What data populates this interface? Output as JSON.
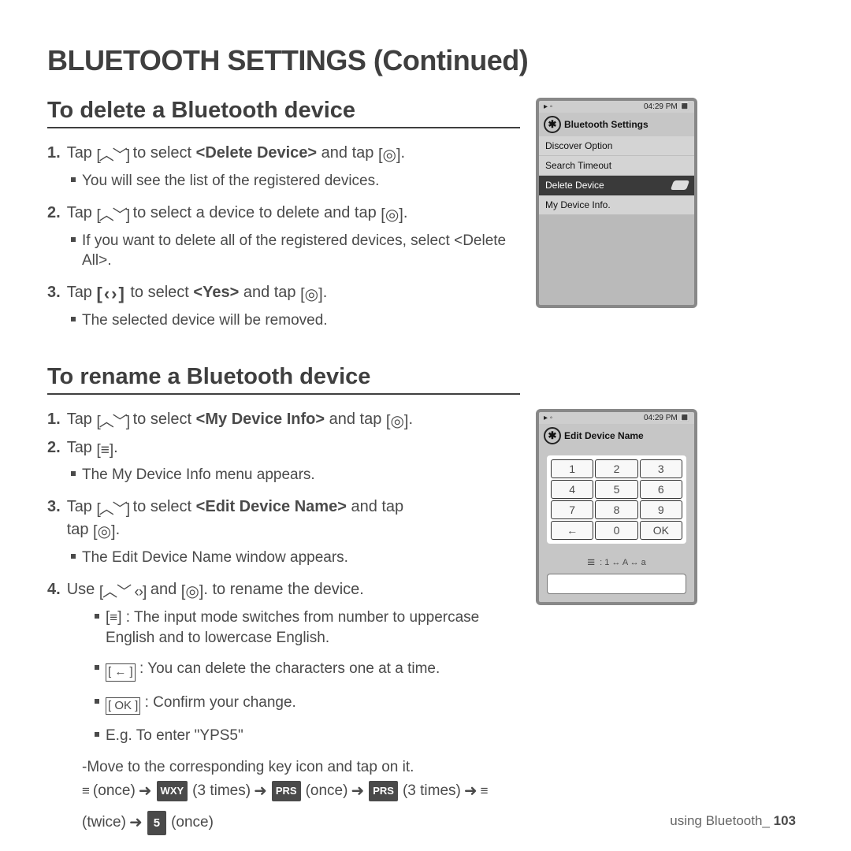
{
  "page_title": "BLUETOOTH SETTINGS (Continued)",
  "section1": {
    "title": "To delete a Bluetooth device",
    "steps": [
      {
        "num": "1.",
        "prefix": "Tap ",
        "nav": "updown",
        "mid": " to select ",
        "bold1": "<Delete Device>",
        "post": " and tap ",
        "end": "circle",
        "subs": [
          {
            "text": "You will see the list of the registered devices."
          }
        ]
      },
      {
        "num": "2.",
        "prefix": "Tap ",
        "nav": "updown",
        "mid": " to select a device to delete and tap ",
        "end": "circle",
        "subs": [
          {
            "text": "If you want to delete all of the registered devices, select <Delete All>."
          }
        ]
      },
      {
        "num": "3.",
        "prefix": "Tap ",
        "nav": "leftright",
        "mid": " to select ",
        "bold1": "<Yes>",
        "post": " and tap ",
        "end": "circle",
        "subs": [
          {
            "text": "The selected device will be removed."
          }
        ]
      }
    ]
  },
  "section2": {
    "title": "To rename a Bluetooth device",
    "steps": [
      {
        "num": "1.",
        "prefix": "Tap ",
        "nav": "updown",
        "mid": " to select ",
        "bold1": "<My Device Info>",
        "post": " and tap ",
        "end": "circle"
      },
      {
        "num": "2.",
        "prefix": "Tap ",
        "end": "menu",
        "subs": [
          {
            "text": "The My Device Info menu appears."
          }
        ]
      },
      {
        "num": "3.",
        "prefix": "Tap ",
        "nav": "updown",
        "mid": " to select ",
        "bold1": "<Edit Device Name>",
        "post2": " and tap ",
        "end": "circle",
        "wrap": true,
        "subs": [
          {
            "text": "The Edit Device Name window appears."
          }
        ]
      },
      {
        "num": "4.",
        "prefix": "Use ",
        "nav": "allnav",
        "mid": " and ",
        "end": "circle",
        "tail": " to rename the device."
      }
    ],
    "notes": [
      {
        "icon": "menu",
        "text": " : The input mode switches from number to uppercase English and to lowercase English."
      },
      {
        "icon": "backbox",
        "text": " : You can delete the characters one at a time."
      },
      {
        "icon": "okbox",
        "text": " : Confirm your change."
      }
    ],
    "example": {
      "intro": "E.g. To enter \"YPS5\"",
      "line2": "-Move to the corresponding key icon and tap on it.",
      "tokens": [
        {
          "type": "menu",
          "label": "(once)"
        },
        {
          "type": "arrow"
        },
        {
          "type": "key",
          "key": "WXY",
          "label": "(3 times)"
        },
        {
          "type": "arrow"
        },
        {
          "type": "key",
          "key": "PRS",
          "label": "(once)"
        },
        {
          "type": "arrow"
        },
        {
          "type": "key",
          "key": "PRS",
          "label": "(3 times)"
        },
        {
          "type": "arrow"
        },
        {
          "type": "menu",
          "label": "(twice)"
        },
        {
          "type": "arrow"
        },
        {
          "type": "numkey",
          "key": "5",
          "label": "(once)"
        }
      ]
    }
  },
  "device1": {
    "time": "04:29 PM",
    "title": "Bluetooth Settings",
    "items": [
      "Discover Option",
      "Search Timeout",
      "Delete Device",
      "My Device Info."
    ],
    "selected_index": 2
  },
  "device2": {
    "time": "04:29 PM",
    "title": "Edit Device Name",
    "keys": [
      [
        "1",
        "2",
        "3"
      ],
      [
        "4",
        "5",
        "6"
      ],
      [
        "7",
        "8",
        "9"
      ],
      [
        "←",
        "0",
        "OK"
      ]
    ],
    "mode": ": 1 ↔ A ↔ a"
  },
  "footer": {
    "label": "using Bluetooth_",
    "page": "103"
  }
}
